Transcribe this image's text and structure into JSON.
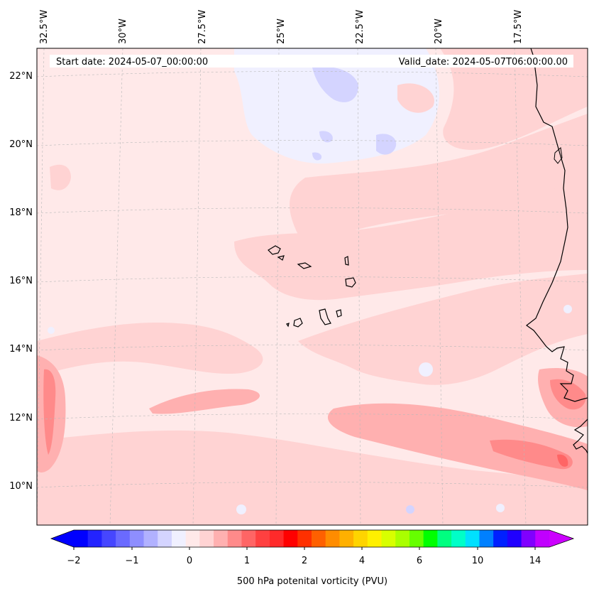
{
  "map": {
    "start_date": "Start date: 2024-05-07_00:00:00",
    "valid_date": "Valid_date: 2024-05-07T06:00:00.00",
    "lon_labels": [
      "32.5°W",
      "30°W",
      "27.5°W",
      "25°W",
      "22.5°W",
      "20°W",
      "17.5°W"
    ],
    "lat_labels": [
      "22°N",
      "20°N",
      "18°N",
      "16°N",
      "14°N",
      "12°N",
      "10°N"
    ],
    "field": "500 hPa potential vorticity",
    "colors": {
      "background": "#ffe9e9",
      "coast": "#000000",
      "grid": "#b0b0b0"
    }
  },
  "colorbar": {
    "title": "500 hPa potenital vorticity (PVU)",
    "tick_labels": [
      "−2",
      "−1",
      "0",
      "1",
      "2",
      "4",
      "6",
      "10",
      "14"
    ],
    "levels": [
      -2,
      -1.75,
      -1.5,
      -1.25,
      -1,
      -0.75,
      -0.5,
      -0.25,
      0,
      0.25,
      0.5,
      0.75,
      1,
      1.25,
      1.5,
      1.75,
      2,
      2.5,
      3,
      3.5,
      4,
      4.5,
      5,
      5.5,
      6,
      7,
      8,
      9,
      10,
      11,
      12,
      13,
      14,
      15
    ],
    "colors": [
      "#0000ff",
      "#2323ff",
      "#4646ff",
      "#6a6aff",
      "#8e8eff",
      "#b1b1ff",
      "#d4d4ff",
      "#f0f0ff",
      "#ffe9e9",
      "#ffd3d3",
      "#ffb0b0",
      "#ff8a8a",
      "#ff6565",
      "#ff4040",
      "#ff2a2a",
      "#ff0000",
      "#ff3000",
      "#ff6000",
      "#ff8c00",
      "#ffb000",
      "#ffd400",
      "#fff000",
      "#d8ff00",
      "#aaff00",
      "#66ff00",
      "#00ff00",
      "#00ff80",
      "#00ffc8",
      "#00e0ff",
      "#0080ff",
      "#0020ff",
      "#2000ff",
      "#8000ff",
      "#c000ff"
    ],
    "under_color": "#0000ff",
    "over_color": "#cc00ff"
  }
}
